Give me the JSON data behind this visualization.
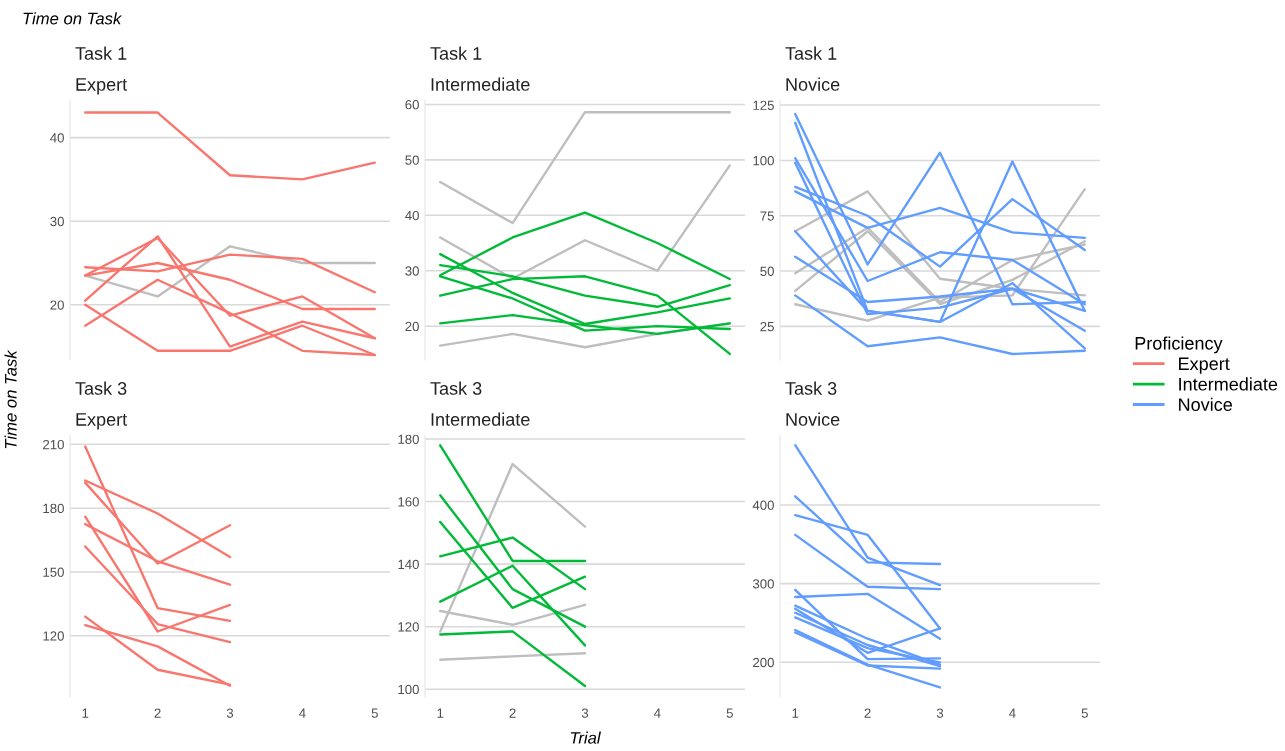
{
  "chart_data": [
    {
      "type": "line",
      "title": "Task 1",
      "subtitle": "Expert",
      "ylabel": "Time on Task",
      "annotations": [
        "Time on Task"
      ],
      "x": [
        1,
        2,
        3,
        4,
        5
      ],
      "xlim": [
        0.79,
        5.21
      ],
      "xticks": [
        1,
        2,
        3,
        4,
        5
      ],
      "ylim": [
        13.4,
        44.5
      ],
      "yticks": [
        20,
        30,
        40
      ],
      "grid": "y",
      "tick_labels": "y",
      "series": [
        {
          "color": "#bebebe",
          "values": [
            23.5,
            21,
            27,
            25,
            25
          ]
        },
        {
          "name": "Expert",
          "color": "#f8766d",
          "values": [
            43,
            43,
            35.5,
            35,
            37
          ]
        },
        {
          "color": "#f8766d",
          "values": [
            24.5,
            24,
            26,
            25.5,
            21.5
          ]
        },
        {
          "color": "#f8766d",
          "values": [
            23.5,
            25,
            23,
            19.5,
            19.5
          ]
        },
        {
          "color": "#f8766d",
          "values": [
            23.5,
            28,
            18.7,
            21,
            16
          ]
        },
        {
          "color": "#f8766d",
          "values": [
            20.5,
            28.2,
            15,
            18,
            16
          ]
        },
        {
          "color": "#f8766d",
          "values": [
            17.5,
            23,
            19,
            14.5,
            14
          ]
        },
        {
          "color": "#f8766d",
          "values": [
            20,
            14.5,
            14.5,
            17.5,
            14
          ]
        }
      ]
    },
    {
      "type": "line",
      "title": "Task 1",
      "subtitle": "Intermediate",
      "x": [
        1,
        2,
        3,
        4,
        5
      ],
      "xlim": [
        0.79,
        5.21
      ],
      "xticks": [
        1,
        2,
        3,
        4,
        5
      ],
      "ylim": [
        13.9,
        60.8
      ],
      "yticks": [
        20,
        30,
        40,
        50,
        60
      ],
      "grid": "y",
      "tick_labels": "y",
      "series": [
        {
          "color": "#bebebe",
          "values": [
            46,
            38.6,
            58.6,
            58.6,
            58.6
          ]
        },
        {
          "color": "#bebebe",
          "values": [
            36,
            28.6,
            35.5,
            30,
            49
          ]
        },
        {
          "color": "#bebebe",
          "values": [
            16.5,
            18.6,
            16.2,
            18.6,
            20.5
          ]
        },
        {
          "name": "Intermediate",
          "color": "#00ba38",
          "values": [
            29.2,
            36,
            40.5,
            35,
            28.5
          ]
        },
        {
          "color": "#00ba38",
          "values": [
            33,
            26,
            20.4,
            22.5,
            25
          ]
        },
        {
          "color": "#00ba38",
          "values": [
            31,
            29,
            25.5,
            23.5,
            27.4
          ]
        },
        {
          "color": "#00ba38",
          "values": [
            25.5,
            28.5,
            29,
            25.5,
            15
          ]
        },
        {
          "color": "#00ba38",
          "values": [
            29,
            25,
            19.2,
            20,
            19.5
          ]
        },
        {
          "color": "#00ba38",
          "values": [
            20.5,
            22,
            20.2,
            18.6,
            20.5
          ]
        }
      ]
    },
    {
      "type": "line",
      "title": "Task 1",
      "subtitle": "Novice",
      "legend": "right",
      "legend_title": "Proficiency",
      "x": [
        1,
        2,
        3,
        4,
        5
      ],
      "xlim": [
        0.79,
        5.21
      ],
      "xticks": [
        1,
        2,
        3,
        4,
        5
      ],
      "ylim": [
        9.8,
        127.3
      ],
      "yticks": [
        25,
        50,
        75,
        100,
        125
      ],
      "grid": "y",
      "tick_labels": "y",
      "series": [
        {
          "color": "#bebebe",
          "values": [
            68,
            86,
            46.5,
            42,
            39
          ]
        },
        {
          "color": "#bebebe",
          "values": [
            49,
            69.6,
            36,
            55,
            62
          ]
        },
        {
          "color": "#bebebe",
          "values": [
            41,
            68,
            35,
            46,
            63.5
          ]
        },
        {
          "color": "#bebebe",
          "values": [
            35,
            27.6,
            38,
            39,
            87
          ]
        },
        {
          "name": "Novice",
          "color": "#619cff",
          "values": [
            121,
            53,
            103.5,
            35,
            36
          ]
        },
        {
          "color": "#619cff",
          "values": [
            117,
            32,
            27,
            99.5,
            32
          ]
        },
        {
          "color": "#619cff",
          "values": [
            101,
            45.5,
            58.5,
            55,
            35
          ]
        },
        {
          "color": "#619cff",
          "values": [
            99,
            30.5,
            33.5,
            42,
            23
          ]
        },
        {
          "color": "#619cff",
          "values": [
            88,
            75,
            52,
            82.5,
            59.5
          ]
        },
        {
          "color": "#619cff",
          "values": [
            86,
            69.5,
            78.5,
            67.5,
            65
          ]
        },
        {
          "color": "#619cff",
          "values": [
            68,
            32,
            27,
            44.5,
            15
          ]
        },
        {
          "color": "#619cff",
          "values": [
            56.5,
            36,
            38.5,
            42,
            32
          ]
        },
        {
          "color": "#619cff",
          "values": [
            39,
            16,
            20,
            12.5,
            14
          ]
        }
      ]
    },
    {
      "type": "line",
      "title": "Task 3",
      "subtitle": "Expert",
      "x": [
        1,
        2,
        3
      ],
      "xlim": [
        0.79,
        5.21
      ],
      "xticks": [
        1,
        2,
        3,
        4,
        5
      ],
      "ylim": [
        91.2,
        214.4
      ],
      "yticks": [
        120,
        150,
        180,
        210
      ],
      "grid": "y",
      "series": [
        {
          "color": "#f8766d",
          "values": [
            209,
            133,
            127
          ]
        },
        {
          "color": "#f8766d",
          "values": [
            193,
            177.5,
            157
          ]
        },
        {
          "color": "#f8766d",
          "values": [
            192,
            154,
            172
          ]
        },
        {
          "color": "#f8766d",
          "values": [
            176,
            122,
            134.5
          ]
        },
        {
          "color": "#f8766d",
          "values": [
            172.5,
            155,
            144
          ]
        },
        {
          "color": "#f8766d",
          "values": [
            162,
            125.5,
            117
          ]
        },
        {
          "color": "#f8766d",
          "values": [
            129,
            104,
            97
          ]
        },
        {
          "color": "#f8766d",
          "values": [
            125,
            115,
            96.5
          ]
        }
      ]
    },
    {
      "type": "line",
      "title": "Task 3",
      "subtitle": "Intermediate",
      "xlabel": "Trial",
      "x": [
        1,
        2,
        3
      ],
      "xlim": [
        0.79,
        5.21
      ],
      "xticks": [
        1,
        2,
        3,
        4,
        5
      ],
      "ylim": [
        97.5,
        181.3
      ],
      "yticks": [
        100,
        120,
        140,
        160,
        180
      ],
      "grid": "y",
      "series": [
        {
          "color": "#bebebe",
          "values": [
            118.4,
            172,
            152
          ]
        },
        {
          "color": "#bebebe",
          "values": [
            125,
            120.6,
            127
          ]
        },
        {
          "color": "#bebebe",
          "values": [
            109.4,
            110.5,
            111.5
          ]
        },
        {
          "color": "#00ba38",
          "values": [
            178,
            141,
            141
          ]
        },
        {
          "color": "#00ba38",
          "values": [
            162,
            132,
            120
          ]
        },
        {
          "color": "#00ba38",
          "values": [
            153.5,
            126,
            136
          ]
        },
        {
          "color": "#00ba38",
          "values": [
            142.5,
            148.5,
            132
          ]
        },
        {
          "color": "#00ba38",
          "values": [
            128,
            139.5,
            114
          ]
        },
        {
          "color": "#00ba38",
          "values": [
            117.5,
            118.5,
            101
          ]
        }
      ]
    },
    {
      "type": "line",
      "title": "Task 3",
      "subtitle": "Novice",
      "x": [
        1,
        2,
        3
      ],
      "xlim": [
        0.79,
        5.21
      ],
      "xticks": [
        1,
        2,
        3,
        4,
        5
      ],
      "ylim": [
        155.9,
        488.9
      ],
      "yticks": [
        200,
        300,
        400
      ],
      "grid": "y",
      "series": [
        {
          "color": "#619cff",
          "values": [
            476,
            333,
            298
          ]
        },
        {
          "color": "#619cff",
          "values": [
            411,
            327,
            325
          ]
        },
        {
          "color": "#619cff",
          "values": [
            387,
            362,
            243
          ]
        },
        {
          "color": "#619cff",
          "values": [
            362,
            296,
            293
          ]
        },
        {
          "color": "#619cff",
          "values": [
            292,
            204,
            205
          ]
        },
        {
          "color": "#619cff",
          "values": [
            283,
            287,
            230
          ]
        },
        {
          "color": "#619cff",
          "values": [
            272,
            230,
            197
          ]
        },
        {
          "color": "#619cff",
          "values": [
            268,
            212,
            243
          ]
        },
        {
          "color": "#619cff",
          "values": [
            263,
            222,
            195
          ]
        },
        {
          "color": "#619cff",
          "values": [
            257,
            218,
            200
          ]
        },
        {
          "color": "#619cff",
          "values": [
            241,
            197,
            168
          ]
        },
        {
          "color": "#619cff",
          "values": [
            238,
            196,
            192
          ]
        }
      ]
    }
  ]
}
